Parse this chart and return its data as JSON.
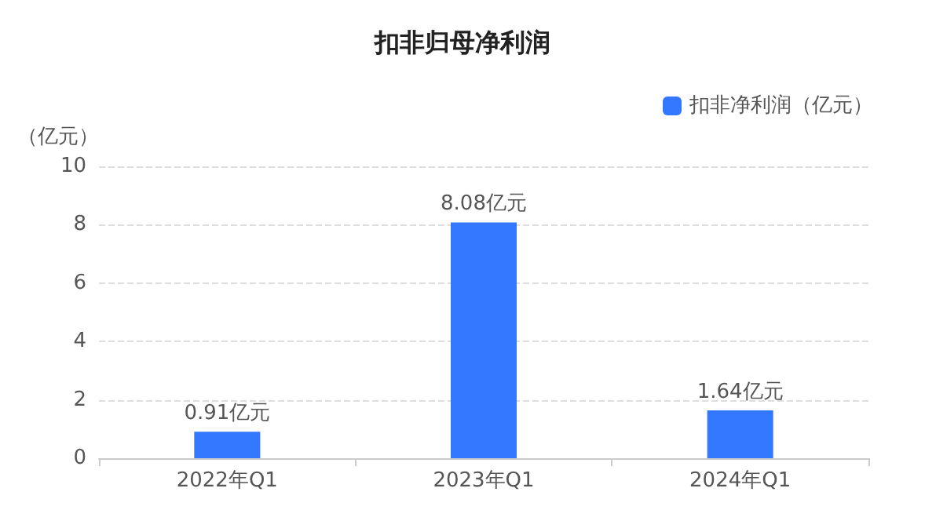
{
  "chart_data": {
    "type": "bar",
    "title": "扣非归母净利润",
    "ylabel": "（亿元）",
    "categories": [
      "2022年Q1",
      "2023年Q1",
      "2024年Q1"
    ],
    "series": [
      {
        "name": "扣非净利润（亿元）",
        "color": "#3377ff",
        "values": [
          0.91,
          8.08,
          1.64
        ],
        "value_labels": [
          "0.91亿元",
          "8.08亿元",
          "1.64亿元"
        ]
      }
    ],
    "ylim": [
      0,
      10
    ],
    "yticks": [
      0,
      2,
      4,
      6,
      8,
      10
    ],
    "grid": "y",
    "legend": "top right"
  }
}
